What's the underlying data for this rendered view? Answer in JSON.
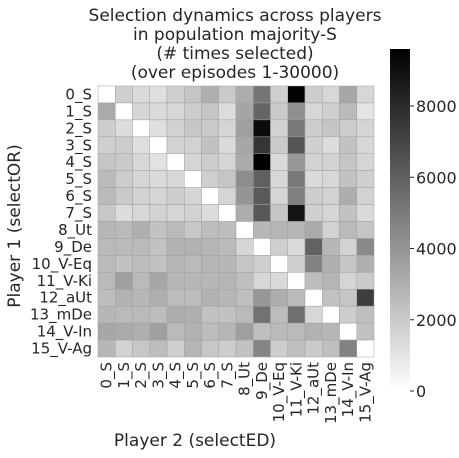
{
  "chart_data": {
    "type": "heatmap",
    "title_lines": [
      "Selection dynamics across players",
      "in population majority-S",
      "(# times selected)",
      "(over episodes 1-30000)"
    ],
    "xlabel": "Player 2 (selectED)",
    "ylabel": "Player 1 (selectOR)",
    "row_labels": [
      "0_S",
      "1_S",
      "2_S",
      "3_S",
      "4_S",
      "5_S",
      "6_S",
      "7_S",
      "8_Ut",
      "9_De",
      "10_V-Eq",
      "11_V-Ki",
      "12_aUt",
      "13_mDe",
      "14_V-In",
      "15_V-Ag"
    ],
    "col_labels": [
      "0_S",
      "1_S",
      "2_S",
      "3_S",
      "4_S",
      "5_S",
      "6_S",
      "7_S",
      "8_Ut",
      "9_De",
      "10_V-Eq",
      "11_V-Ki",
      "12_aUt",
      "13_mDe",
      "14_V-In",
      "15_V-Ag"
    ],
    "values": [
      [
        0,
        1800,
        1400,
        1200,
        1800,
        2200,
        3000,
        2000,
        3100,
        5200,
        1800,
        9500,
        1900,
        1500,
        3300,
        1500
      ],
      [
        3200,
        0,
        1600,
        1400,
        1500,
        1900,
        2200,
        1300,
        3400,
        5800,
        2000,
        4200,
        1500,
        1800,
        2600,
        1000
      ],
      [
        1900,
        1300,
        0,
        1200,
        1700,
        2100,
        2000,
        1600,
        3600,
        9200,
        1700,
        5000,
        1900,
        2200,
        1900,
        1600
      ],
      [
        1800,
        1900,
        1200,
        0,
        1700,
        1700,
        2300,
        1400,
        3300,
        7600,
        2000,
        6400,
        1800,
        1300,
        2300,
        1500
      ],
      [
        2200,
        2000,
        1500,
        1100,
        0,
        1600,
        1900,
        1600,
        3200,
        9600,
        1400,
        3900,
        1700,
        1700,
        2200,
        1600
      ],
      [
        2600,
        1900,
        1600,
        1400,
        1500,
        0,
        1800,
        2200,
        4300,
        6000,
        1500,
        5000,
        1400,
        1500,
        2300,
        1800
      ],
      [
        2600,
        2000,
        1700,
        1600,
        1900,
        1600,
        0,
        1600,
        4000,
        6200,
        1600,
        4800,
        1900,
        1700,
        3100,
        1700
      ],
      [
        2100,
        1300,
        1500,
        1700,
        1600,
        1700,
        1300,
        0,
        3100,
        6300,
        2200,
        8800,
        1800,
        1600,
        2300,
        1400
      ],
      [
        2700,
        2600,
        3000,
        2300,
        2600,
        2100,
        2500,
        2500,
        0,
        2700,
        2800,
        2700,
        3200,
        1700,
        2600,
        2200
      ],
      [
        2600,
        2600,
        2600,
        2300,
        2900,
        2900,
        2800,
        2600,
        1600,
        0,
        1800,
        1400,
        5900,
        2700,
        1700,
        4400
      ],
      [
        2600,
        2300,
        2500,
        2300,
        2800,
        2600,
        2800,
        2700,
        2200,
        1800,
        0,
        1800,
        4700,
        3000,
        2200,
        3000
      ],
      [
        2600,
        3600,
        2600,
        3300,
        2700,
        2700,
        2700,
        2800,
        2400,
        1500,
        1400,
        0,
        2500,
        2800,
        1600,
        2000
      ],
      [
        2500,
        2900,
        2700,
        3000,
        2500,
        2500,
        2900,
        2700,
        2400,
        3900,
        3100,
        2600,
        0,
        2300,
        2200,
        7300
      ],
      [
        2700,
        2600,
        2600,
        2500,
        3100,
        3000,
        2300,
        2300,
        2600,
        5300,
        2500,
        5400,
        1500,
        0,
        1900,
        2400
      ],
      [
        3300,
        3200,
        3000,
        3600,
        2600,
        2900,
        2500,
        2800,
        3600,
        2400,
        2600,
        2600,
        2900,
        2700,
        0,
        2300
      ],
      [
        2700,
        1700,
        2100,
        2500,
        1800,
        2800,
        2100,
        1900,
        2300,
        4600,
        1900,
        2400,
        2000,
        2400,
        4700,
        0
      ]
    ],
    "colorbar": {
      "min": 0,
      "max": 9600,
      "ticks": [
        0,
        2000,
        4000,
        6000,
        8000
      ],
      "tick_labels": [
        "0",
        "2000",
        "4000",
        "6000",
        "8000"
      ],
      "colormap": "white-to-black (Greys)"
    },
    "grid_lines": true
  }
}
